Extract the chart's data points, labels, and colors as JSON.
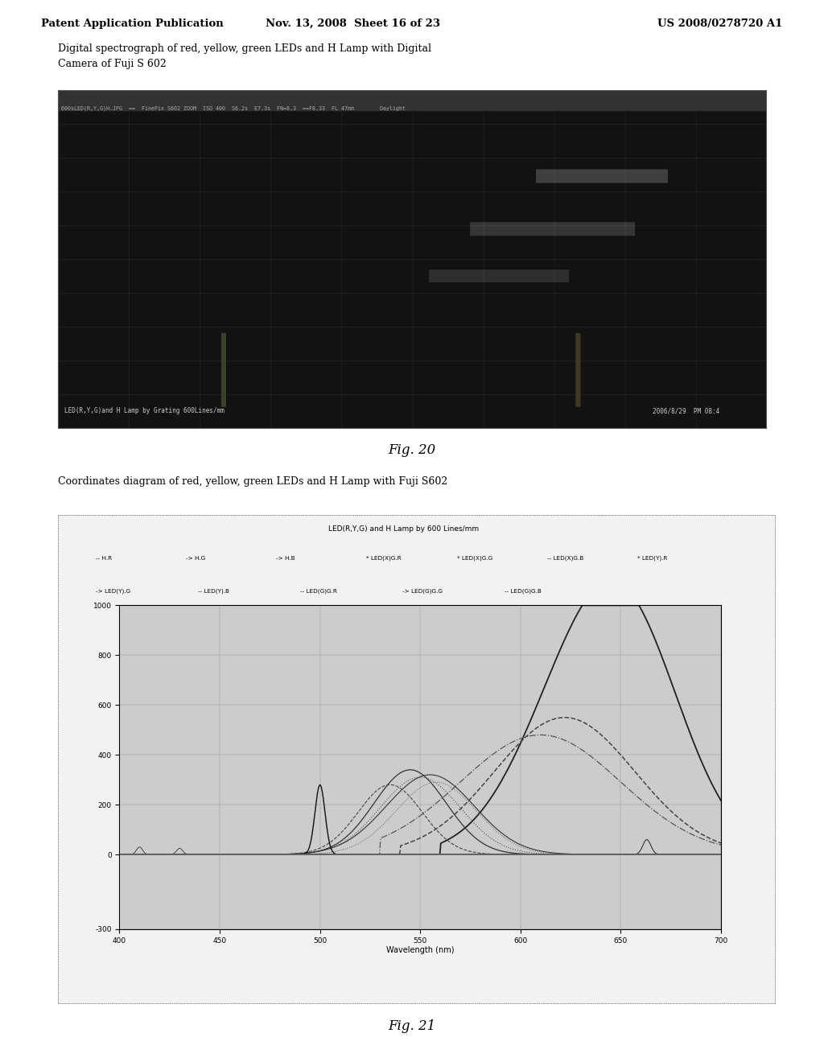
{
  "page_header_left": "Patent Application Publication",
  "page_header_mid": "Nov. 13, 2008  Sheet 16 of 23",
  "page_header_right": "US 2008/0278720 A1",
  "fig20_title": "Digital spectrograph of red, yellow, green LEDs and H Lamp with Digital\nCamera of Fuji S 602",
  "fig20_caption": "Fig. 20",
  "fig20_bottom_left": "LED(R,Y,G)and H Lamp by Grating 600Lines/mm",
  "fig20_bottom_right": "2006/8/29  PM 08:4",
  "fig20_top_bar": "600sLED(R,Y,G)H.JPG  ==  FinePix S602 ZOOM  ISO 400  S6.2s  E7.3s  FN=8.3  ==F8.33  FL 47mm        Daylight",
  "fig21_title": "Coordinates diagram of red, yellow, green LEDs and H Lamp with Fuji S602",
  "fig21_caption": "Fig. 21",
  "fig21_chart_title": "LED(R,Y,G) and H Lamp by 600 Lines/mm",
  "fig21_xlabel": "Wavelength (nm)",
  "fig21_ylim": [
    -300,
    1000
  ],
  "fig21_xlim": [
    400,
    700
  ],
  "fig21_yticks": [
    -300,
    0,
    200,
    400,
    600,
    800,
    1000
  ],
  "fig21_xticks": [
    400,
    450,
    500,
    550,
    600,
    650,
    700
  ],
  "page_bg": "#ffffff",
  "chart_bg": "#cccccc",
  "legend_row1": [
    "-- H.R",
    "-> H.G",
    "-> H.B",
    "* LED(X)G.R",
    "* LED(X)G.G",
    "-- LED(X)G.B",
    "* LED(Y).R"
  ],
  "legend_row2": [
    "-> LED(Y).G",
    "-- LED(Y).B",
    "-- LED(G)G.R",
    "-> LED(G)G.G",
    "-- LED(G)G.B"
  ]
}
